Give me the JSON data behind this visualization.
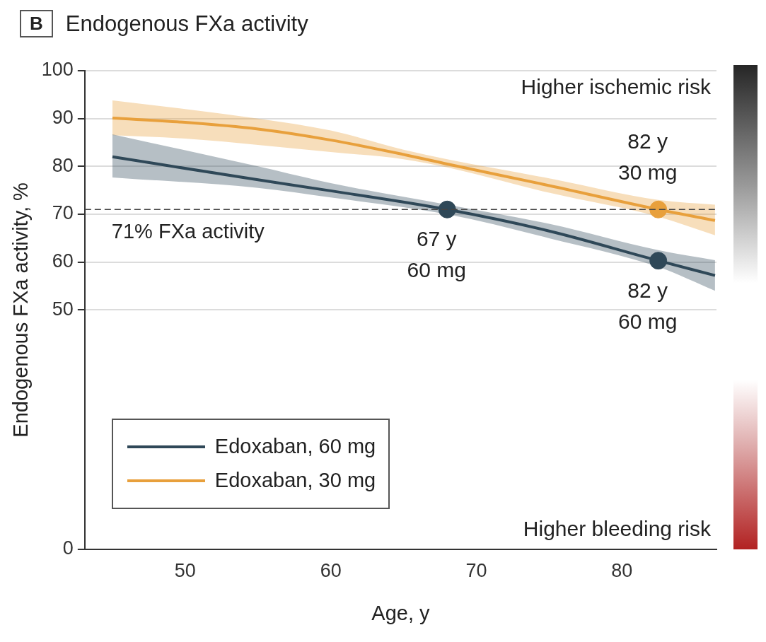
{
  "chart_data": {
    "type": "line",
    "title": "Endogenous FXa activity",
    "xlabel": "Age, y",
    "ylabel": "Endogenous FXa activity, %",
    "xlim": [
      43.1,
      86.5
    ],
    "xticks": [
      50,
      60,
      70,
      80
    ],
    "ylim": [
      0,
      100
    ],
    "yticks": [
      0,
      50,
      60,
      70,
      80,
      90,
      100
    ],
    "series": [
      {
        "name": "Edoxaban, 60 mg",
        "color": "#2f4858",
        "x": [
          45,
          55,
          60,
          68,
          75,
          82.5,
          86.4
        ],
        "values": [
          82,
          77.2,
          74.9,
          71,
          66.5,
          60.3,
          57.2
        ],
        "lower": [
          77.7,
          75.5,
          73.5,
          70,
          65,
          59,
          54
        ],
        "upper": [
          86.7,
          80,
          76.5,
          72,
          68,
          62.5,
          60.4
        ]
      },
      {
        "name": "Edoxaban, 30 mg",
        "color": "#e8a03c",
        "x": [
          45,
          50,
          55,
          60,
          65,
          68,
          75,
          82.5,
          86.4
        ],
        "values": [
          90.1,
          89.2,
          87.8,
          85.5,
          82.5,
          80.5,
          76,
          71,
          68.7
        ],
        "lower": [
          86.5,
          85.8,
          84.5,
          83,
          81.5,
          79.8,
          74.5,
          69.5,
          65.6
        ],
        "upper": [
          93.8,
          92,
          90,
          87.5,
          83.5,
          81.5,
          77.5,
          73,
          72
        ]
      },
      {
        "type": "scatter",
        "color": "#2f4858",
        "marker": "circle",
        "x": [
          68,
          82.5
        ],
        "values": [
          71,
          60.3
        ],
        "value_labels": [
          "67 y\n60 mg",
          "82 y\n60 mg"
        ]
      },
      {
        "type": "scatter",
        "color": "#e8a03c",
        "marker": "circle",
        "x": [
          82.5
        ],
        "values": [
          71
        ],
        "value_labels": [
          "82 y\n30 mg"
        ]
      }
    ],
    "ref_lines": [
      {
        "axis": "y",
        "value": 71,
        "label": "71% FXa activity",
        "line_style": "dashed",
        "color": "#444444"
      }
    ],
    "annotations": [
      "B",
      "Higher ischemic risk",
      "Higher bleeding risk"
    ],
    "grid": "y",
    "legend": "bottom left"
  }
}
